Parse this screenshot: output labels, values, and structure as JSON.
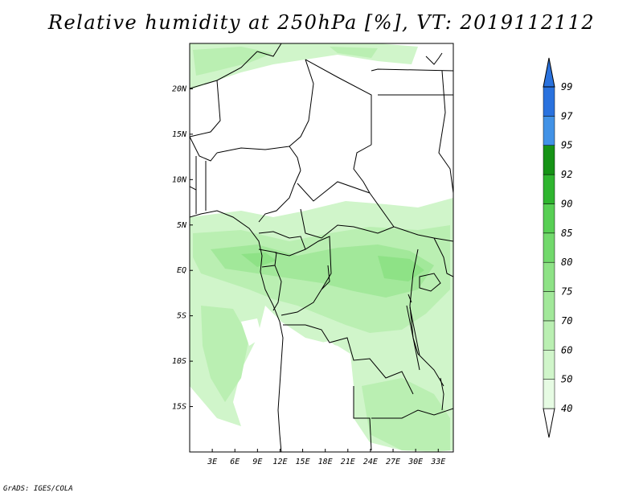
{
  "title": "Relative humidity at 250hPa [%], VT: 2019112112",
  "footer": "GrADS: IGES/COLA",
  "map": {
    "lon_range": [
      0,
      35
    ],
    "lat_range": [
      -20,
      25
    ],
    "lat_ticks": [
      {
        "value": 20,
        "label": "20N"
      },
      {
        "value": 15,
        "label": "15N"
      },
      {
        "value": 10,
        "label": "10N"
      },
      {
        "value": 5,
        "label": "5N"
      },
      {
        "value": 0,
        "label": "EQ"
      },
      {
        "value": -5,
        "label": "5S"
      },
      {
        "value": -10,
        "label": "10S"
      },
      {
        "value": -15,
        "label": "15S"
      }
    ],
    "lon_ticks": [
      {
        "value": 3,
        "label": "3E"
      },
      {
        "value": 6,
        "label": "6E"
      },
      {
        "value": 9,
        "label": "9E"
      },
      {
        "value": 12,
        "label": "12E"
      },
      {
        "value": 15,
        "label": "15E"
      },
      {
        "value": 18,
        "label": "18E"
      },
      {
        "value": 21,
        "label": "21E"
      },
      {
        "value": 24,
        "label": "24E"
      },
      {
        "value": 27,
        "label": "27E"
      },
      {
        "value": 30,
        "label": "30E"
      },
      {
        "value": 33,
        "label": "33E"
      }
    ]
  },
  "colorbar": {
    "levels": [
      "40",
      "50",
      "60",
      "70",
      "75",
      "80",
      "85",
      "90",
      "92",
      "95",
      "97",
      "99"
    ],
    "colors": [
      "#e6fbe3",
      "#d0f5ca",
      "#baefb2",
      "#a2e89a",
      "#8ee286",
      "#72d96c",
      "#58cf54",
      "#2fb52f",
      "#169316",
      "#4292e6",
      "#2a72de",
      "#1a5cc8"
    ],
    "below_color": "#ffffff",
    "above_color": "#2a72de"
  }
}
